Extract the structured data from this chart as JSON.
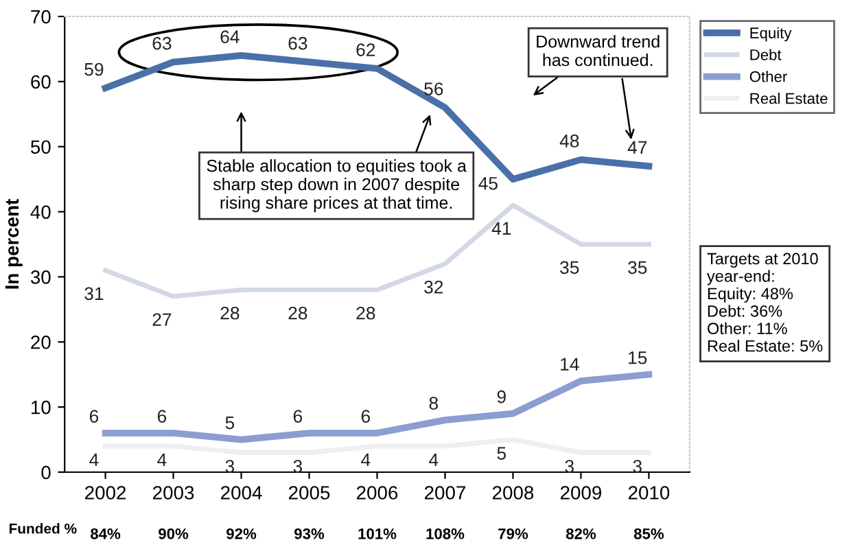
{
  "chart_data": {
    "type": "line",
    "ylabel": "In percent",
    "categories": [
      "2002",
      "2003",
      "2004",
      "2005",
      "2006",
      "2007",
      "2008",
      "2009",
      "2010"
    ],
    "series": [
      {
        "name": "Equity",
        "color": "#4a70a8",
        "values": [
          59,
          63,
          64,
          63,
          62,
          56,
          45,
          48,
          47
        ]
      },
      {
        "name": "Debt",
        "color": "#d3d8e6",
        "values": [
          31,
          27,
          28,
          28,
          28,
          32,
          41,
          35,
          35
        ]
      },
      {
        "name": "Other",
        "color": "#8c9dd0",
        "values": [
          6,
          6,
          5,
          6,
          6,
          8,
          9,
          14,
          15
        ]
      },
      {
        "name": "Real Estate",
        "color": "#eeeef3",
        "values": [
          4,
          4,
          3,
          3,
          4,
          4,
          5,
          3,
          3
        ]
      }
    ],
    "ylim": [
      0,
      70
    ],
    "yticks": [
      0,
      10,
      20,
      30,
      40,
      50,
      60,
      70
    ],
    "data_labels": true,
    "legend": "right",
    "grid": false,
    "marker": "none",
    "line_style": "solid",
    "annotations": [
      "Stable allocation to equities took a\nsharp step down in 2007 despite\nrising share prices at that time.",
      "Downward trend\nhas continued.",
      "Targets at 2010\nyear-end:\nEquity: 48%\nDebt: 36%\nOther: 11%\nReal Estate: 5%",
      "Funded %",
      "84%",
      "90%",
      "92%",
      "93%",
      "101%",
      "108%",
      "79%",
      "82%",
      "85%"
    ]
  }
}
